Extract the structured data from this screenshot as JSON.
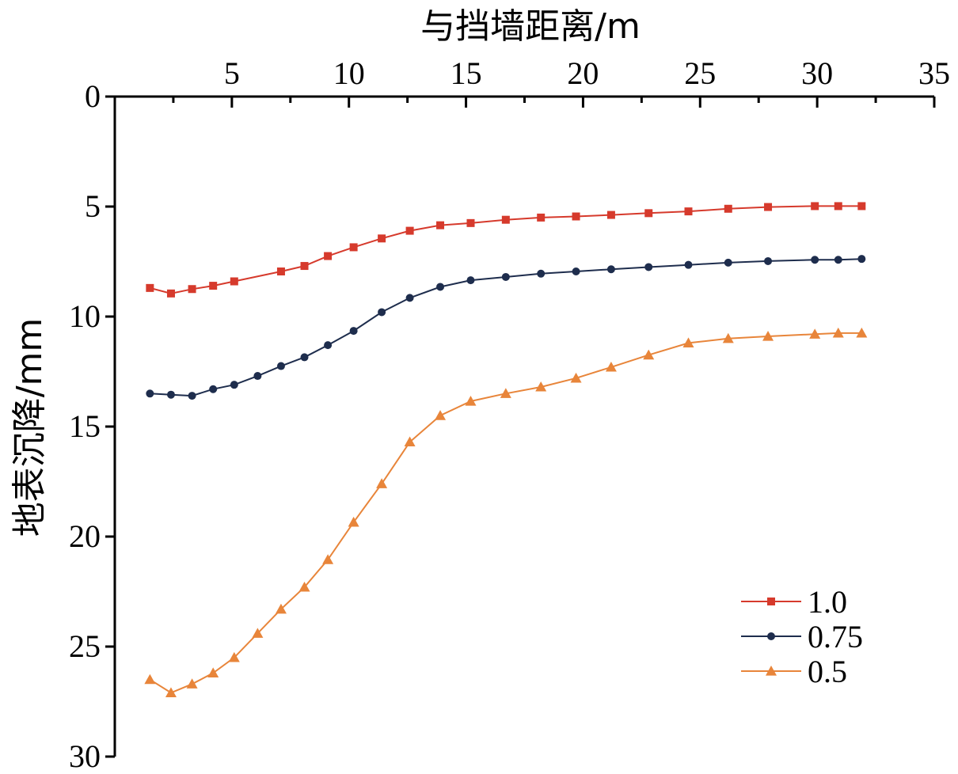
{
  "chart_data": {
    "type": "line",
    "xlabel": "与挡墙距离/m",
    "ylabel": "地表沉降/mm",
    "x_axis_position": "top",
    "y_axis_inverted": true,
    "xlim": [
      0,
      35
    ],
    "ylim": [
      0,
      30
    ],
    "x_ticks": [
      5,
      10,
      15,
      20,
      25,
      30,
      35
    ],
    "y_ticks": [
      0,
      5,
      10,
      15,
      20,
      25,
      30
    ],
    "grid": false,
    "legend_position": "bottom-right",
    "series": [
      {
        "name": "1.0",
        "color": "#d63a2c",
        "marker": "square",
        "x": [
          1.5,
          2.4,
          3.3,
          4.2,
          5.1,
          7.1,
          8.1,
          9.1,
          10.2,
          11.4,
          12.6,
          13.9,
          15.2,
          16.7,
          18.2,
          19.7,
          21.2,
          22.8,
          24.5,
          26.2,
          27.9,
          29.9,
          30.9,
          31.9
        ],
        "y": [
          8.7,
          8.95,
          8.75,
          8.6,
          8.4,
          7.95,
          7.7,
          7.25,
          6.85,
          6.45,
          6.1,
          5.85,
          5.75,
          5.6,
          5.5,
          5.45,
          5.38,
          5.3,
          5.22,
          5.1,
          5.02,
          4.98,
          4.98,
          4.98
        ]
      },
      {
        "name": "0.75",
        "color": "#1e2d4d",
        "marker": "circle",
        "x": [
          1.5,
          2.4,
          3.3,
          4.2,
          5.1,
          6.1,
          7.1,
          8.1,
          9.1,
          10.2,
          11.4,
          12.6,
          13.9,
          15.2,
          16.7,
          18.2,
          19.7,
          21.2,
          22.8,
          24.5,
          26.2,
          27.9,
          29.9,
          30.9,
          31.9
        ],
        "y": [
          13.5,
          13.55,
          13.6,
          13.3,
          13.1,
          12.7,
          12.25,
          11.85,
          11.3,
          10.65,
          9.8,
          9.15,
          8.65,
          8.35,
          8.2,
          8.05,
          7.95,
          7.85,
          7.75,
          7.65,
          7.55,
          7.48,
          7.42,
          7.42,
          7.38
        ]
      },
      {
        "name": "0.5",
        "color": "#e8853a",
        "marker": "triangle",
        "x": [
          1.5,
          2.4,
          3.3,
          4.2,
          5.1,
          6.1,
          7.1,
          8.1,
          9.1,
          10.2,
          11.4,
          12.6,
          13.9,
          15.2,
          16.7,
          18.2,
          19.7,
          21.2,
          22.8,
          24.5,
          26.2,
          27.9,
          29.9,
          30.9,
          31.9
        ],
        "y": [
          26.5,
          27.1,
          26.7,
          26.2,
          25.5,
          24.4,
          23.3,
          22.3,
          21.05,
          19.35,
          17.6,
          15.7,
          14.5,
          13.85,
          13.5,
          13.2,
          12.8,
          12.3,
          11.75,
          11.2,
          11.0,
          10.9,
          10.8,
          10.75,
          10.75
        ]
      }
    ]
  }
}
